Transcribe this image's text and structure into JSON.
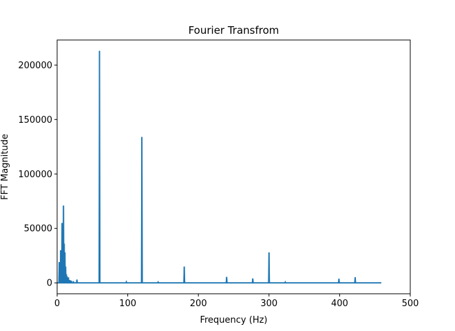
{
  "chart_data": {
    "type": "line",
    "title": "Fourier Transfrom",
    "xlabel": "Frequency (Hz)",
    "ylabel": "FFT Magnitude",
    "xlim": [
      0,
      500
    ],
    "ylim": [
      -10000,
      223000
    ],
    "xticks": [
      0,
      100,
      200,
      300,
      400,
      500
    ],
    "xtick_labels": [
      "0",
      "100",
      "200",
      "300",
      "400",
      "500"
    ],
    "yticks": [
      0,
      50000,
      100000,
      150000,
      200000
    ],
    "ytick_labels": [
      "0",
      "50000",
      "100000",
      "150000",
      "200000"
    ],
    "grid": false,
    "series": [
      {
        "color": "#1f77b4",
        "peaks": [
          {
            "x": 3,
            "y": 19000
          },
          {
            "x": 4,
            "y": 9000
          },
          {
            "x": 5,
            "y": 30000
          },
          {
            "x": 6,
            "y": 12000
          },
          {
            "x": 7,
            "y": 55000
          },
          {
            "x": 8,
            "y": 33000
          },
          {
            "x": 9,
            "y": 71000
          },
          {
            "x": 10,
            "y": 36000
          },
          {
            "x": 11,
            "y": 28000
          },
          {
            "x": 12,
            "y": 15000
          },
          {
            "x": 13,
            "y": 8000
          },
          {
            "x": 14,
            "y": 6000
          },
          {
            "x": 16,
            "y": 5000
          },
          {
            "x": 18,
            "y": 2500
          },
          {
            "x": 20,
            "y": 2000
          },
          {
            "x": 23,
            "y": 1500
          },
          {
            "x": 28,
            "y": 3000
          },
          {
            "x": 60,
            "y": 213000
          },
          {
            "x": 98,
            "y": 1000
          },
          {
            "x": 120,
            "y": 134000
          },
          {
            "x": 143,
            "y": 800
          },
          {
            "x": 180,
            "y": 15000
          },
          {
            "x": 240,
            "y": 5500
          },
          {
            "x": 277,
            "y": 4000
          },
          {
            "x": 300,
            "y": 28000
          },
          {
            "x": 323,
            "y": 800
          },
          {
            "x": 399,
            "y": 3800
          },
          {
            "x": 422,
            "y": 5200
          }
        ],
        "x_end": 459
      }
    ]
  }
}
